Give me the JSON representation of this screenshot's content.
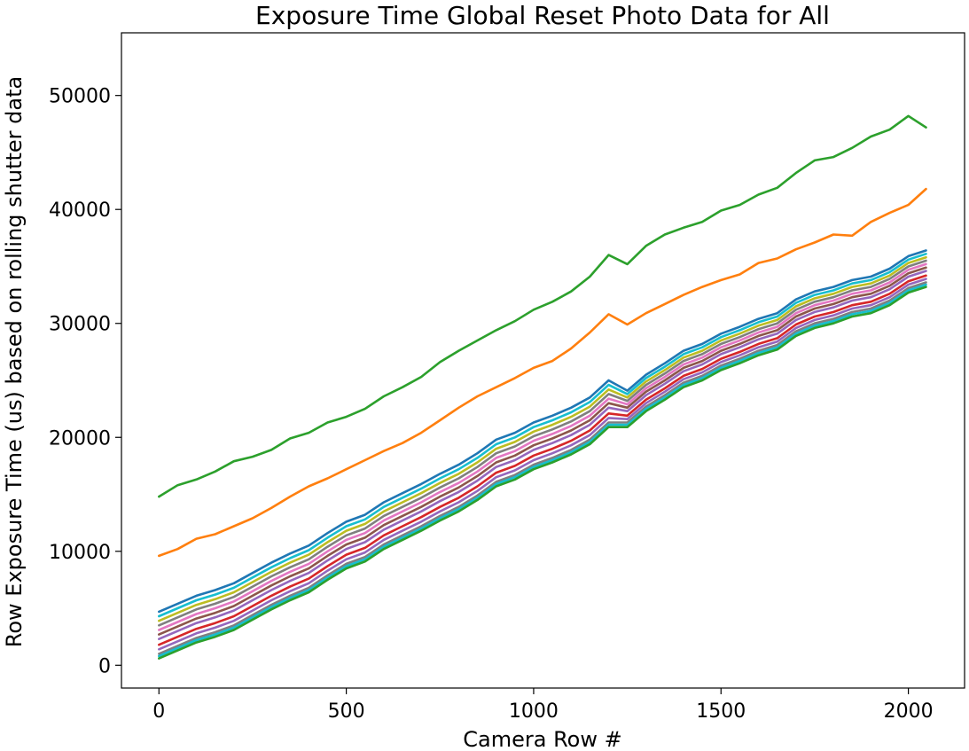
{
  "chart_data": {
    "type": "line",
    "title": "Exposure Time Global Reset Photo Data for All",
    "xlabel": "Camera Row #",
    "ylabel": "Row Exposure Time (us) based on rolling shutter data",
    "xlim": [
      -100,
      2150
    ],
    "ylim": [
      -2000,
      55500
    ],
    "xticks": [
      0,
      500,
      1000,
      1500,
      2000
    ],
    "yticks": [
      0,
      10000,
      20000,
      30000,
      40000,
      50000
    ],
    "xtick_labels": [
      "0",
      "500",
      "1000",
      "1500",
      "2000"
    ],
    "ytick_labels": [
      "0",
      "10000",
      "20000",
      "30000",
      "40000",
      "50000"
    ],
    "grid": false,
    "legend": "none",
    "x": [
      0,
      50,
      100,
      150,
      200,
      250,
      300,
      350,
      400,
      450,
      500,
      550,
      600,
      650,
      700,
      750,
      800,
      850,
      900,
      950,
      1000,
      1050,
      1100,
      1150,
      1200,
      1250,
      1300,
      1350,
      1400,
      1450,
      1500,
      1550,
      1600,
      1650,
      1700,
      1750,
      1800,
      1850,
      1900,
      1950,
      2000,
      2047
    ],
    "series": [
      {
        "color": "#2ca02c",
        "values": [
          14800,
          15800,
          16300,
          17000,
          17900,
          18300,
          18900,
          19900,
          20400,
          21300,
          21800,
          22500,
          23600,
          24400,
          25300,
          26600,
          27600,
          28500,
          29400,
          30200,
          31200,
          31900,
          32800,
          34100,
          36000,
          35200,
          36800,
          37800,
          38400,
          38900,
          39900,
          40400,
          41300,
          41900,
          43200,
          44300,
          44600,
          45400,
          46400,
          47000,
          48200,
          47200
        ]
      },
      {
        "color": "#ff7f0e",
        "values": [
          9600,
          10200,
          11100,
          11500,
          12200,
          12900,
          13800,
          14800,
          15700,
          16400,
          17200,
          18000,
          18800,
          19500,
          20400,
          21500,
          22600,
          23600,
          24400,
          25200,
          26100,
          26700,
          27800,
          29200,
          30800,
          29900,
          30900,
          31700,
          32500,
          33200,
          33800,
          34300,
          35300,
          35700,
          36500,
          37100,
          37800,
          37700,
          38900,
          39700,
          40400,
          41800
        ]
      },
      {
        "color": "#1f77b4",
        "values": [
          4700,
          5400,
          6100,
          6600,
          7200,
          8100,
          9000,
          9800,
          10500,
          11600,
          12600,
          13200,
          14300,
          15100,
          15900,
          16800,
          17600,
          18600,
          19800,
          20400,
          21300,
          21900,
          22600,
          23500,
          25000,
          24100,
          25500,
          26500,
          27600,
          28200,
          29100,
          29700,
          30400,
          30900,
          32100,
          32800,
          33200,
          33800,
          34100,
          34800,
          35900,
          36400
        ]
      },
      {
        "color": "#17becf",
        "values": [
          4300,
          5000,
          5700,
          6200,
          6800,
          7700,
          8600,
          9400,
          10100,
          11200,
          12200,
          12800,
          13900,
          14700,
          15500,
          16400,
          17200,
          18200,
          19400,
          20000,
          20900,
          21500,
          22200,
          23100,
          24600,
          23800,
          25200,
          26200,
          27300,
          27900,
          28800,
          29400,
          30100,
          30600,
          31800,
          32500,
          32900,
          33500,
          33800,
          34500,
          35600,
          36100
        ]
      },
      {
        "color": "#bcbd22",
        "values": [
          3900,
          4600,
          5300,
          5800,
          6400,
          7300,
          8200,
          9000,
          9700,
          10800,
          11800,
          12400,
          13500,
          14300,
          15100,
          16000,
          16800,
          17800,
          19000,
          19600,
          20500,
          21100,
          21800,
          22700,
          24200,
          23500,
          24900,
          25900,
          27000,
          27600,
          28500,
          29100,
          29800,
          30300,
          31500,
          32200,
          32600,
          33200,
          33500,
          34200,
          35300,
          35800
        ]
      },
      {
        "color": "#7f7f7f",
        "values": [
          3500,
          4200,
          4900,
          5400,
          6000,
          6900,
          7800,
          8600,
          9300,
          10400,
          11400,
          12000,
          13100,
          13900,
          14700,
          15600,
          16400,
          17400,
          18600,
          19200,
          20100,
          20700,
          21400,
          22300,
          23800,
          23200,
          24600,
          25600,
          26700,
          27300,
          28200,
          28800,
          29500,
          30000,
          31200,
          31900,
          32300,
          32900,
          33200,
          33900,
          35000,
          35500
        ]
      },
      {
        "color": "#e377c2",
        "values": [
          3100,
          3800,
          4500,
          5000,
          5600,
          6500,
          7400,
          8200,
          8900,
          10000,
          11000,
          11600,
          12700,
          13500,
          14300,
          15200,
          16000,
          17000,
          18200,
          18800,
          19700,
          20300,
          21000,
          21900,
          23400,
          22900,
          24300,
          25300,
          26400,
          27000,
          27900,
          28500,
          29200,
          29700,
          30900,
          31600,
          32000,
          32600,
          32900,
          33600,
          34700,
          35200
        ]
      },
      {
        "color": "#8c564b",
        "values": [
          2700,
          3400,
          4100,
          4600,
          5200,
          6100,
          7000,
          7800,
          8500,
          9600,
          10600,
          11200,
          12300,
          13100,
          13900,
          14800,
          15600,
          16600,
          17800,
          18400,
          19300,
          19900,
          20600,
          21500,
          23000,
          22600,
          24000,
          25000,
          26100,
          26700,
          27600,
          28200,
          28900,
          29400,
          30600,
          31300,
          31700,
          32300,
          32600,
          33300,
          34400,
          34900
        ]
      },
      {
        "color": "#9467bd",
        "values": [
          2300,
          3000,
          3700,
          4200,
          4800,
          5700,
          6600,
          7400,
          8100,
          9200,
          10200,
          10800,
          11900,
          12700,
          13500,
          14400,
          15200,
          16200,
          17400,
          18000,
          18900,
          19500,
          20200,
          21100,
          22600,
          22300,
          23700,
          24700,
          25800,
          26400,
          27300,
          27900,
          28600,
          29100,
          30300,
          31000,
          31400,
          32000,
          32300,
          33000,
          34100,
          34600
        ]
      },
      {
        "color": "#d62728",
        "values": [
          1800,
          2500,
          3200,
          3700,
          4300,
          5200,
          6100,
          6900,
          7600,
          8700,
          9700,
          10300,
          11400,
          12200,
          13000,
          13900,
          14700,
          15700,
          16900,
          17500,
          18400,
          19000,
          19700,
          20600,
          22100,
          21900,
          23300,
          24300,
          25400,
          26000,
          26900,
          27500,
          28200,
          28700,
          29900,
          30600,
          31000,
          31600,
          31900,
          32600,
          33700,
          34200
        ]
      },
      {
        "color": "#9467bd",
        "values": [
          1400,
          2100,
          2800,
          3300,
          3900,
          4800,
          5700,
          6500,
          7200,
          8300,
          9300,
          9900,
          11000,
          11800,
          12600,
          13500,
          14300,
          15300,
          16500,
          17100,
          18000,
          18600,
          19300,
          20200,
          21700,
          21600,
          23000,
          24000,
          25100,
          25700,
          26600,
          27200,
          27900,
          28400,
          29600,
          30300,
          30700,
          31300,
          31600,
          32300,
          33400,
          33900
        ]
      },
      {
        "color": "#7f7f7f",
        "values": [
          1000,
          1700,
          2400,
          2900,
          3500,
          4400,
          5300,
          6100,
          6800,
          7900,
          8900,
          9500,
          10600,
          11400,
          12200,
          13100,
          13900,
          14900,
          16100,
          16700,
          17600,
          18200,
          18900,
          19800,
          21300,
          21300,
          22700,
          23700,
          24800,
          25400,
          26300,
          26900,
          27600,
          28100,
          29300,
          30000,
          30400,
          31000,
          31300,
          32000,
          33100,
          33600
        ]
      },
      {
        "color": "#17becf",
        "values": [
          800,
          1500,
          2200,
          2700,
          3300,
          4200,
          5100,
          5900,
          6600,
          7700,
          8700,
          9300,
          10400,
          11200,
          12000,
          12900,
          13700,
          14700,
          15900,
          16500,
          17400,
          18000,
          18700,
          19600,
          21100,
          21100,
          22500,
          23500,
          24600,
          25200,
          26100,
          26700,
          27400,
          27900,
          29100,
          29800,
          30200,
          30800,
          31100,
          31800,
          32900,
          33400
        ]
      },
      {
        "color": "#2ca02c",
        "values": [
          600,
          1300,
          2000,
          2500,
          3100,
          4000,
          4900,
          5700,
          6400,
          7500,
          8500,
          9100,
          10200,
          11000,
          11800,
          12700,
          13500,
          14500,
          15700,
          16300,
          17200,
          17800,
          18500,
          19400,
          20900,
          20900,
          22300,
          23300,
          24400,
          25000,
          25900,
          26500,
          27200,
          27700,
          28900,
          29600,
          30000,
          30600,
          30900,
          31600,
          32700,
          33200
        ]
      }
    ]
  }
}
